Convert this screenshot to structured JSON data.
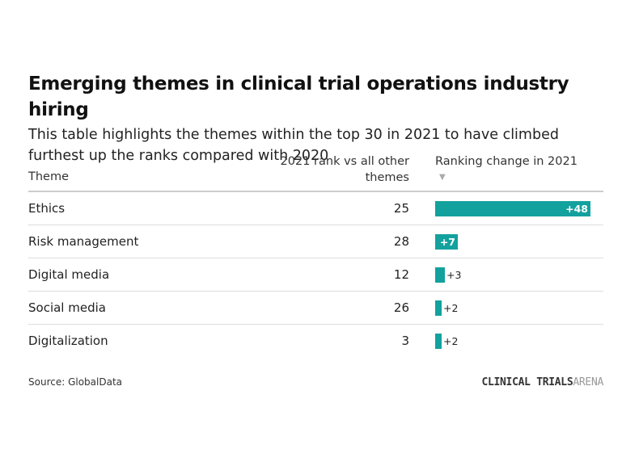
{
  "header": {
    "title": "Emerging themes in clinical trial operations industry hiring",
    "subtitle": "This table highlights the themes within the top 30 in 2021 to have climbed furthest up the ranks compared with 2020"
  },
  "columns": {
    "theme": "Theme",
    "rank_line1": "2021 rank vs all other",
    "rank_line2": "themes",
    "change": "Ranking change in 2021",
    "sort_icon": "sort-descending-icon"
  },
  "chart_data": {
    "type": "table",
    "title": "Emerging themes in clinical trial operations industry hiring",
    "subtitle": "This table highlights the themes within the top 30 in 2021 to have climbed furthest up the ranks compared with 2020",
    "columns": [
      "Theme",
      "2021 rank vs all other themes",
      "Ranking change in 2021"
    ],
    "rows": [
      {
        "theme": "Ethics",
        "rank": "25",
        "change": 48,
        "change_label": "+48"
      },
      {
        "theme": "Risk management",
        "rank": "28",
        "change": 7,
        "change_label": "+7"
      },
      {
        "theme": "Digital media",
        "rank": "12",
        "change": 3,
        "change_label": "+3"
      },
      {
        "theme": "Social media",
        "rank": "26",
        "change": 2,
        "change_label": "+2"
      },
      {
        "theme": "Digitalization",
        "rank": "3",
        "change": 2,
        "change_label": "+2"
      }
    ],
    "change_max": 48,
    "bar_color": "#13a19e"
  },
  "footer": {
    "source": "Source: GlobalData",
    "brand_bold": "CLINICAL TRIALS",
    "brand_light": "ARENA"
  }
}
